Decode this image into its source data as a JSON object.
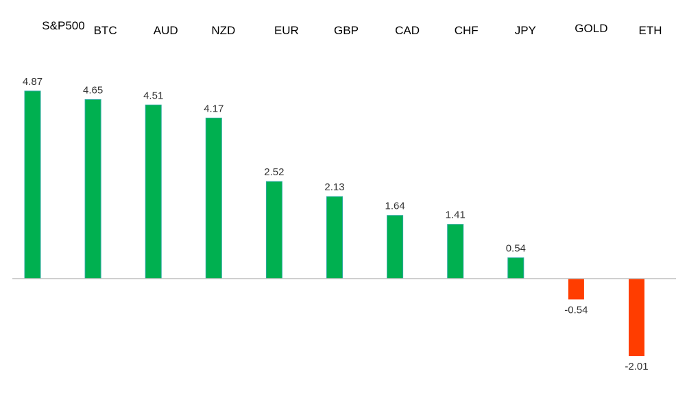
{
  "chart_data": {
    "type": "bar",
    "categories": [
      "S&P500",
      "BTC",
      "AUD",
      "NZD",
      "EUR",
      "GBP",
      "CAD",
      "CHF",
      "JPY",
      "GOLD",
      "ETH"
    ],
    "values": [
      4.87,
      4.65,
      4.51,
      4.17,
      2.52,
      2.13,
      1.64,
      1.41,
      0.54,
      -0.54,
      -2.01
    ],
    "value_labels": [
      "4.87",
      "4.65",
      "4.51",
      "4.17",
      "2.52",
      "2.13",
      "1.64",
      "1.41",
      "0.54",
      "-0.54",
      "-2.01"
    ],
    "title": "",
    "xlabel": "",
    "ylabel": "",
    "ylim": [
      -2.01,
      4.87
    ],
    "grid": false,
    "legend": "none",
    "category_label_position": "top",
    "colors": {
      "positive": "#00B050",
      "negative": "#FF3D00",
      "positive_edge": "#2CA9A0",
      "axis": "#BFBFBF"
    }
  }
}
